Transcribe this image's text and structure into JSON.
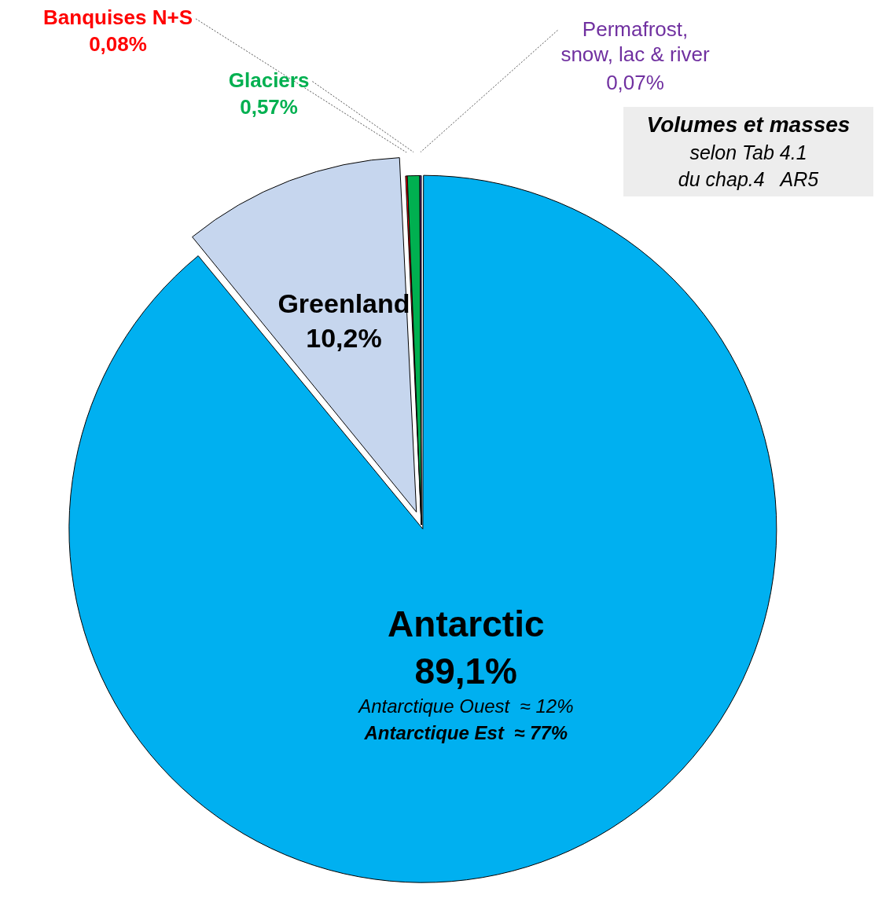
{
  "chart_data": {
    "type": "pie",
    "title": "Volumes et masses",
    "categories": [
      "Antarctic",
      "Greenland",
      "Banquises N+S",
      "Glaciers",
      "Permafrost, snow, lac & river"
    ],
    "values": [
      89.1,
      10.2,
      0.08,
      0.57,
      0.07
    ],
    "value_labels": [
      "89,1%",
      "10,2%",
      "0,08%",
      "0,57%",
      "0,07%"
    ],
    "colors": [
      "#00b0f0",
      "#c6d6ee",
      "#ff0000",
      "#00b050",
      "#7030a0"
    ],
    "annotations": [
      "selon Tab 4.1",
      "du chap.4   AR5",
      "Antarctique Ouest  ≈ 12%",
      "Antarctique Est  ≈ 77%"
    ],
    "legend": false
  }
}
